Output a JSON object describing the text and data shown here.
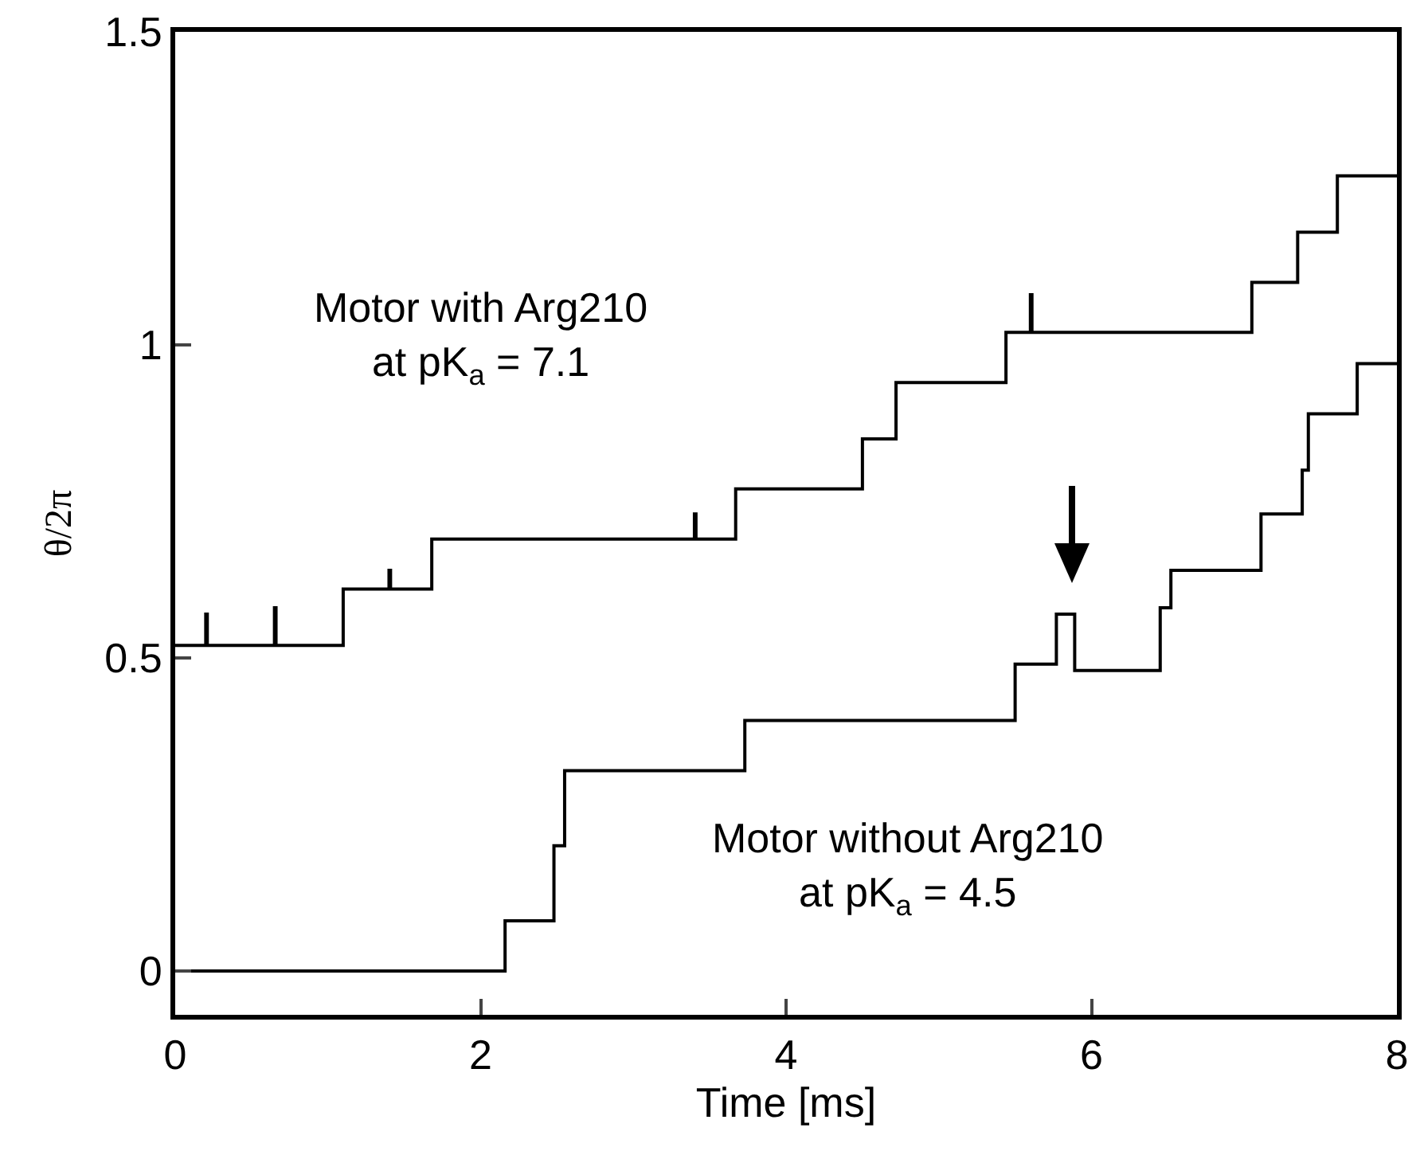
{
  "chart_data": {
    "type": "step",
    "xlabel": "Time [ms]",
    "ylabel": "θ/2π",
    "xlim": [
      0,
      8
    ],
    "xticks": [
      0,
      2,
      4,
      6,
      8
    ],
    "ylim": [
      -0.07,
      1.5
    ],
    "yticks": [
      0,
      0.5,
      1,
      1.5
    ],
    "grid": false,
    "marker": "none",
    "line_style": "solid",
    "series": [
      {
        "color": "#000000",
        "x": [
          0,
          0.2,
          0.21,
          0.65,
          0.66,
          1.1,
          1.4,
          1.41,
          1.68,
          3.4,
          3.41,
          3.67,
          4.5,
          4.72,
          5.44,
          5.6,
          5.61,
          7.05,
          7.35,
          7.61,
          8
        ],
        "values": [
          0.52,
          0.57,
          0.52,
          0.58,
          0.52,
          0.61,
          0.64,
          0.61,
          0.69,
          0.73,
          0.69,
          0.77,
          0.85,
          0.94,
          1.02,
          1.08,
          1.02,
          1.1,
          1.18,
          1.27,
          1.27
        ]
      },
      {
        "color": "#000000",
        "x": [
          0,
          2.16,
          2.48,
          2.55,
          3.73,
          5.5,
          5.77,
          5.89,
          6.45,
          6.52,
          7.11,
          7.38,
          7.42,
          7.74,
          8
        ],
        "values": [
          0.0,
          0.08,
          0.2,
          0.32,
          0.4,
          0.49,
          0.57,
          0.48,
          0.58,
          0.64,
          0.73,
          0.8,
          0.89,
          0.97,
          0.97
        ]
      }
    ],
    "annotations": [
      "Motor with Arg210\nat pK$_{a}$ = 7.1",
      "Motor without Arg210\nat pK$_{a}$ = 4.5"
    ]
  }
}
